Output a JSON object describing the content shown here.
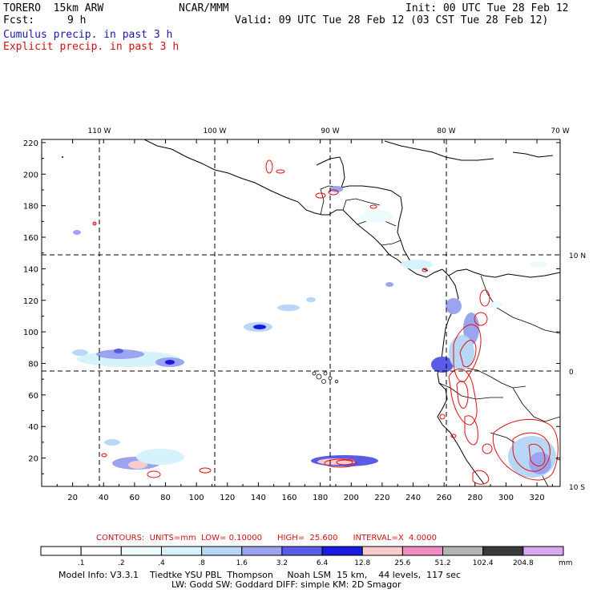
{
  "header": {
    "model": "TORERO  15km ARW",
    "org": "NCAR/MMM",
    "init": "Init: 00 UTC Tue 28 Feb 12",
    "fcst_label": "Fcst:",
    "fcst_value": "9 h",
    "valid": "Valid: 09 UTC Tue 28 Feb 12 (03 CST Tue 28 Feb 12)",
    "field1": "Cumulus precip. in past 3 h",
    "field2": "Explicit precip. in past 3 h",
    "field1_color": "#1a1aa8",
    "field2_color": "#d01010"
  },
  "map": {
    "x_ticks": [
      "20",
      "40",
      "60",
      "80",
      "100",
      "120",
      "140",
      "160",
      "180",
      "200",
      "220",
      "240",
      "260",
      "280",
      "300",
      "320"
    ],
    "y_ticks": [
      "220",
      "200",
      "180",
      "160",
      "140",
      "120",
      "100",
      "80",
      "60",
      "40",
      "20"
    ],
    "lon_labels": [
      "110 W",
      "100 W",
      "90 W",
      "80 W",
      "70 W"
    ],
    "lat_labels": [
      "10 N",
      "0",
      "10 S"
    ],
    "x_range": [
      0,
      335
    ],
    "y_range": [
      2,
      222
    ]
  },
  "contours": {
    "label": "CONTOURS:  UNITS=mm  LOW= 0.10000      HIGH=  25.600      INTERVAL=X  4.0000"
  },
  "colorbar": {
    "levels": [
      ".1",
      ".2",
      ".4",
      ".8",
      "1.6",
      "3.2",
      "6.4",
      "12.8",
      "25.6",
      "51.2",
      "102.4",
      "204.8"
    ],
    "colors": [
      "#ffffff",
      "#ffffff",
      "#ecfbfb",
      "#d6f3fb",
      "#b8d6f5",
      "#9aa4ef",
      "#5a5ce8",
      "#1a1ae0",
      "#f8cccc",
      "#f08cc0",
      "#b4b4b4",
      "#3a3a3a",
      "#d8a8f0"
    ],
    "unit": "mm"
  },
  "footer": {
    "line1": "Model Info: V3.3.1    Tiedtke YSU PBL  Thompson     Noah LSM  15 km,    44 levels,  117 sec",
    "line2": "LW: Godd SW: Goddard DIFF: simple KM: 2D Smagor"
  }
}
